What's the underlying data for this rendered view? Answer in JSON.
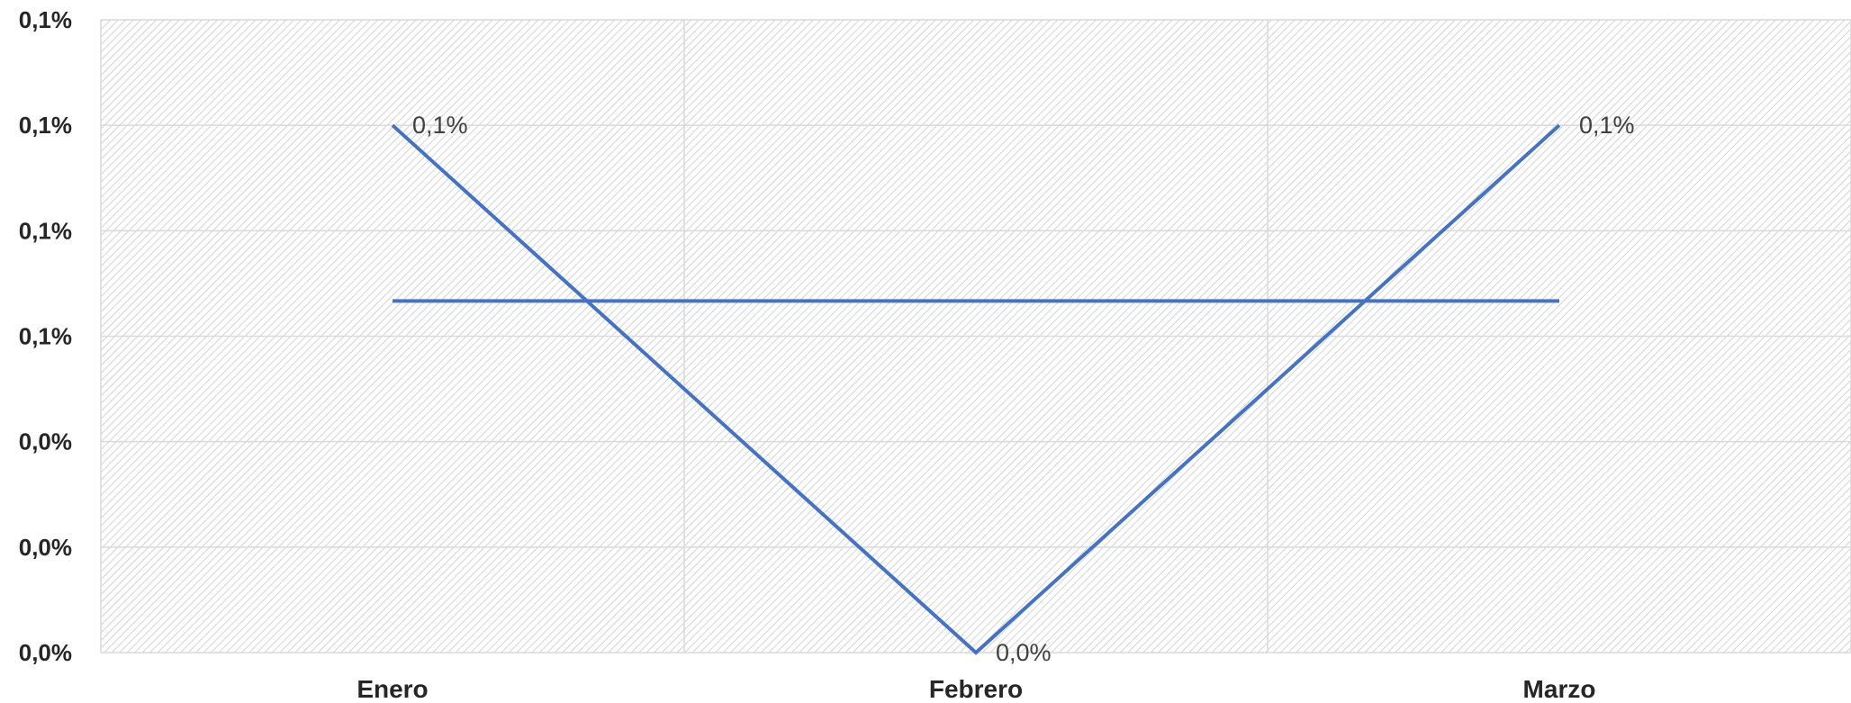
{
  "chart_data": {
    "type": "line",
    "categories": [
      "Enero",
      "Febrero",
      "Marzo"
    ],
    "series": [
      {
        "values": [
          0.12,
          0.0,
          0.12
        ],
        "data_labels": [
          "0,1%",
          "0,0%",
          "0,1%"
        ],
        "color": "#4472C4"
      },
      {
        "values": [
          0.08,
          0.08,
          0.08
        ],
        "color": "#4472C4"
      }
    ],
    "y_tick_labels": [
      "0,0%",
      "0,0%",
      "0,0%",
      "0,1%",
      "0,1%",
      "0,1%",
      "0,1%"
    ],
    "ylim": [
      0.0,
      0.144
    ],
    "grid": true,
    "background": "hatched",
    "colors": {
      "line": "#4472C4",
      "hatch": "#c8c8c8",
      "grid": "#d9d9d9",
      "text": "#262626"
    }
  }
}
